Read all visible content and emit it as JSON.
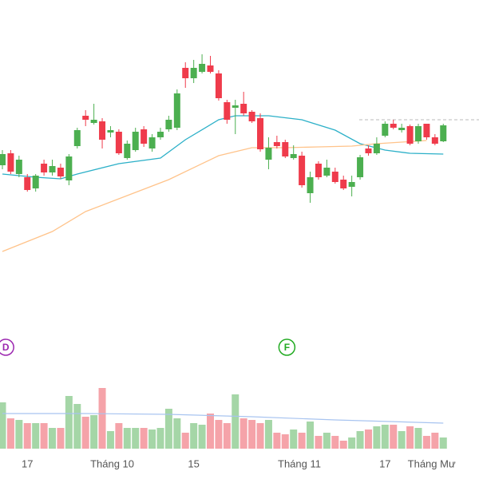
{
  "chart_data": {
    "type": "candlestick",
    "open": [
      193,
      208,
      182,
      178,
      164,
      195,
      184,
      190,
      174,
      217,
      255,
      246,
      248,
      234,
      235,
      202,
      212,
      238,
      214,
      228,
      238,
      240,
      315,
      302,
      310,
      318,
      308,
      272,
      265,
      270,
      260,
      252,
      200,
      222,
      222,
      202,
      205,
      158,
      195,
      180,
      185,
      175,
      166,
      178,
      214,
      208,
      230,
      245,
      237,
      242,
      223,
      245,
      228,
      223
    ],
    "high": [
      212,
      212,
      205,
      182,
      182,
      200,
      200,
      195,
      207,
      240,
      262,
      270,
      252,
      242,
      238,
      224,
      240,
      242,
      232,
      240,
      255,
      288,
      322,
      325,
      332,
      330,
      312,
      275,
      275,
      285,
      262,
      258,
      228,
      230,
      225,
      218,
      210,
      185,
      198,
      200,
      190,
      180,
      180,
      206,
      218,
      228,
      248,
      250,
      245,
      244,
      245,
      245,
      232,
      245
    ],
    "low": [
      188,
      182,
      178,
      160,
      160,
      180,
      180,
      176,
      168,
      214,
      242,
      244,
      214,
      228,
      206,
      200,
      210,
      216,
      210,
      225,
      235,
      237,
      290,
      296,
      308,
      308,
      274,
      245,
      232,
      255,
      246,
      210,
      188,
      214,
      202,
      200,
      165,
      146,
      175,
      178,
      170,
      162,
      154,
      175,
      205,
      206,
      228,
      238,
      234,
      218,
      220,
      225,
      218,
      222
    ],
    "close": [
      207,
      185,
      200,
      162,
      180,
      184,
      192,
      179,
      204,
      237,
      250,
      250,
      225,
      237,
      208,
      220,
      235,
      220,
      228,
      235,
      250,
      283,
      302,
      315,
      320,
      310,
      277,
      250,
      268,
      258,
      248,
      213,
      215,
      217,
      204,
      207,
      168,
      178,
      178,
      190,
      172,
      164,
      172,
      203,
      208,
      220,
      245,
      240,
      240,
      220,
      242,
      228,
      220,
      243
    ],
    "ylim": [
      0,
      400
    ],
    "up_color": "#4caf50",
    "down_color": "#ef3b4b",
    "price_line": 250,
    "xticks": [
      {
        "value": 3,
        "label": "17"
      },
      {
        "value": 13.2,
        "label": "Tháng 10"
      },
      {
        "value": 23,
        "label": "15"
      },
      {
        "value": 35.7,
        "label": "Tháng 11"
      },
      {
        "value": 46,
        "label": "17"
      },
      {
        "value": 51.6,
        "label": "Tháng Mư"
      }
    ],
    "moving_averages": [
      {
        "color": "#2cb0c8",
        "x": [
          0,
          4,
          7,
          9,
          14,
          19,
          22,
          26,
          28,
          32,
          36,
          40,
          43,
          46,
          49,
          53
        ],
        "values": [
          182,
          178,
          176,
          182,
          195,
          202,
          225,
          250,
          255,
          255,
          250,
          237,
          220,
          212,
          208,
          207
        ]
      },
      {
        "color": "#ffc38a",
        "x": [
          0,
          6,
          10,
          15,
          20,
          26,
          30,
          34,
          38,
          42,
          45,
          48,
          51
        ],
        "values": [
          85,
          110,
          135,
          155,
          175,
          205,
          215,
          215,
          216,
          217,
          220,
          222,
          224
        ]
      }
    ],
    "volume": {
      "values": [
        58,
        38,
        36,
        32,
        32,
        32,
        26,
        26,
        66,
        56,
        40,
        42,
        76,
        22,
        32,
        26,
        26,
        26,
        24,
        26,
        50,
        38,
        20,
        32,
        30,
        44,
        36,
        32,
        68,
        38,
        36,
        32,
        36,
        20,
        18,
        24,
        20,
        34,
        16,
        20,
        16,
        10,
        14,
        22,
        24,
        28,
        30,
        30,
        22,
        28,
        26,
        16,
        20,
        14
      ],
      "ylim": [
        0,
        102
      ],
      "up_color": "#a5d6a7",
      "down_color": "#f5a3a9",
      "ma": {
        "color": "#a8c4f0",
        "x": [
          0,
          10,
          20,
          30,
          40,
          53
        ],
        "values": [
          44,
          44,
          43,
          40,
          36,
          32
        ]
      }
    },
    "events": [
      {
        "label": "D",
        "x": 0.4,
        "color": "#9c27b0"
      },
      {
        "label": "F",
        "x": 34.2,
        "color": "#22ab22"
      }
    ]
  }
}
